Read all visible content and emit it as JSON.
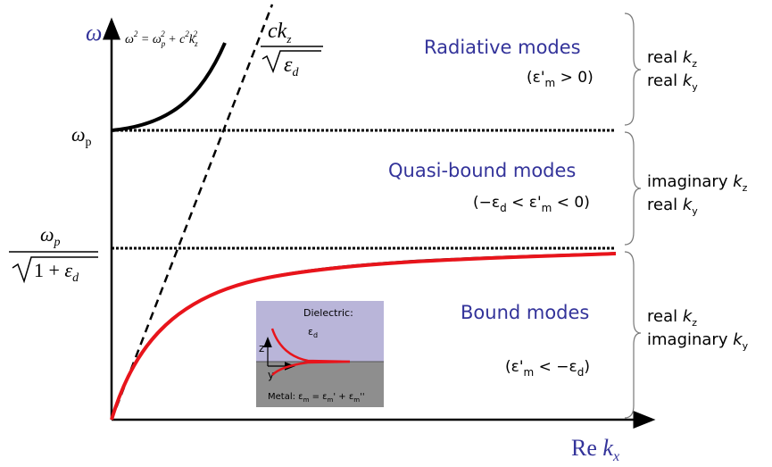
{
  "axes": {
    "y_label": "ω",
    "x_label": {
      "prefix": "Re ",
      "var": "k",
      "sub": "x"
    }
  },
  "levels": {
    "omega_p": {
      "var": "ω",
      "sub": "p"
    },
    "surface": {
      "num_var": "ω",
      "num_sub": "p",
      "den": "1 + ",
      "den_var": "ε",
      "den_sub": "d"
    }
  },
  "curves": {
    "bulk_equation": {
      "a": "ω",
      "a_sup": "2",
      "eq": " = ω",
      "b_sub": "p",
      "b_sup": "2",
      "plus": " + c",
      "c_sup": "2",
      "k": "k",
      "k_sub": "z",
      "k_sup": "2"
    },
    "light_line": {
      "num": "ck",
      "num_sub": "z",
      "den_var": "ε",
      "den_sub": "d"
    }
  },
  "regions": [
    {
      "title": "Radiative modes",
      "condition": [
        "(ε",
        "'",
        "m",
        " > 0)"
      ],
      "notes": [
        {
          "pre": "real ",
          "var": "k",
          "sub": "z"
        },
        {
          "pre": "real ",
          "var": "k",
          "sub": "y"
        }
      ]
    },
    {
      "title": "Quasi-bound modes",
      "condition": [
        "(−ε",
        "d",
        " < ε",
        "'",
        "m",
        " < 0)"
      ],
      "notes": [
        {
          "pre": "imaginary ",
          "var": "k",
          "sub": "z"
        },
        {
          "pre": "real ",
          "var": "k",
          "sub": "y"
        }
      ]
    },
    {
      "title": "Bound modes",
      "condition": [
        "(ε",
        "'",
        "m",
        " < −ε",
        "d",
        ")"
      ],
      "notes": [
        {
          "pre": "real ",
          "var": "k",
          "sub": "z"
        },
        {
          "pre": "imaginary ",
          "var": "k",
          "sub": "y"
        }
      ]
    }
  ],
  "inset": {
    "dielectric": "Dielectric:",
    "eps": "ε",
    "eps_sub": "d",
    "z": "z",
    "y": "y",
    "metal": [
      "Metal: ε",
      "m",
      " = ε",
      "m",
      "' + ε",
      "m",
      "''"
    ]
  }
}
